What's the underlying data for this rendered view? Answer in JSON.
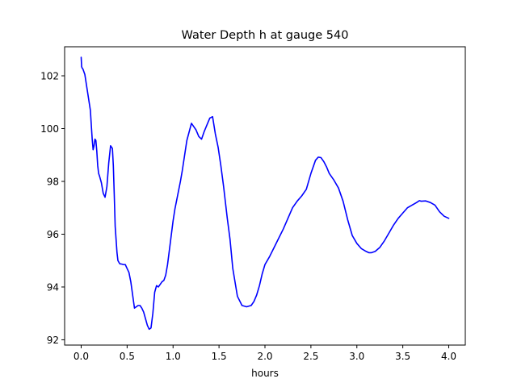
{
  "chart_data": {
    "type": "line",
    "title": "Water Depth h at gauge 540",
    "xlabel": "hours",
    "ylabel": "",
    "xlim": [
      -0.18,
      4.18
    ],
    "ylim": [
      91.8,
      103.1
    ],
    "xticks": [
      0.0,
      0.5,
      1.0,
      1.5,
      2.0,
      2.5,
      3.0,
      3.5,
      4.0
    ],
    "xtick_labels": [
      "0.0",
      "0.5",
      "1.0",
      "1.5",
      "2.0",
      "2.5",
      "3.0",
      "3.5",
      "4.0"
    ],
    "yticks": [
      92,
      94,
      96,
      98,
      100,
      102
    ],
    "ytick_labels": [
      "92",
      "94",
      "96",
      "98",
      "100",
      "102"
    ],
    "grid": false,
    "line_color": "#0000ff",
    "series": [
      {
        "name": "",
        "x": [
          0.0,
          0.005,
          0.01,
          0.02,
          0.04,
          0.06,
          0.08,
          0.1,
          0.12,
          0.13,
          0.14,
          0.15,
          0.16,
          0.17,
          0.18,
          0.19,
          0.2,
          0.22,
          0.24,
          0.26,
          0.28,
          0.3,
          0.32,
          0.34,
          0.35,
          0.36,
          0.37,
          0.38,
          0.39,
          0.4,
          0.42,
          0.44,
          0.46,
          0.48,
          0.5,
          0.52,
          0.54,
          0.56,
          0.58,
          0.6,
          0.62,
          0.64,
          0.66,
          0.68,
          0.7,
          0.72,
          0.74,
          0.76,
          0.78,
          0.8,
          0.82,
          0.84,
          0.86,
          0.88,
          0.9,
          0.92,
          0.94,
          0.96,
          0.98,
          1.0,
          1.02,
          1.04,
          1.06,
          1.08,
          1.1,
          1.15,
          1.2,
          1.25,
          1.28,
          1.31,
          1.34,
          1.37,
          1.4,
          1.43,
          1.46,
          1.49,
          1.52,
          1.55,
          1.57,
          1.59,
          1.62,
          1.65,
          1.7,
          1.75,
          1.8,
          1.85,
          1.88,
          1.91,
          1.94,
          1.97,
          2.0,
          2.05,
          2.1,
          2.15,
          2.2,
          2.25,
          2.3,
          2.35,
          2.4,
          2.45,
          2.5,
          2.55,
          2.58,
          2.61,
          2.64,
          2.67,
          2.7,
          2.75,
          2.8,
          2.85,
          2.9,
          2.95,
          3.0,
          3.05,
          3.1,
          3.13,
          3.16,
          3.2,
          3.25,
          3.3,
          3.35,
          3.4,
          3.45,
          3.5,
          3.55,
          3.6,
          3.65,
          3.68,
          3.7,
          3.75,
          3.8,
          3.85,
          3.9,
          3.95,
          4.0
        ],
        "y": [
          102.7,
          102.35,
          102.3,
          102.25,
          102.05,
          101.6,
          101.15,
          100.7,
          99.6,
          99.2,
          99.35,
          99.6,
          99.55,
          99.15,
          98.6,
          98.3,
          98.2,
          97.95,
          97.55,
          97.4,
          97.8,
          98.7,
          99.35,
          99.25,
          98.6,
          97.5,
          96.3,
          95.8,
          95.3,
          95.0,
          94.88,
          94.87,
          94.85,
          94.85,
          94.7,
          94.55,
          94.2,
          93.7,
          93.2,
          93.25,
          93.3,
          93.3,
          93.2,
          93.05,
          92.8,
          92.55,
          92.4,
          92.45,
          93.0,
          93.8,
          94.05,
          94.0,
          94.1,
          94.2,
          94.25,
          94.45,
          94.85,
          95.4,
          95.95,
          96.5,
          96.95,
          97.3,
          97.65,
          98.0,
          98.4,
          99.55,
          100.2,
          99.95,
          99.7,
          99.6,
          99.9,
          100.15,
          100.4,
          100.45,
          99.8,
          99.3,
          98.6,
          97.8,
          97.2,
          96.6,
          95.8,
          94.7,
          93.65,
          93.3,
          93.25,
          93.3,
          93.45,
          93.7,
          94.05,
          94.5,
          94.85,
          95.15,
          95.5,
          95.85,
          96.2,
          96.6,
          97.0,
          97.25,
          97.45,
          97.7,
          98.3,
          98.8,
          98.92,
          98.9,
          98.75,
          98.55,
          98.3,
          98.05,
          97.75,
          97.25,
          96.55,
          95.95,
          95.65,
          95.45,
          95.35,
          95.3,
          95.3,
          95.35,
          95.5,
          95.75,
          96.05,
          96.35,
          96.6,
          96.8,
          97.0,
          97.1,
          97.2,
          97.27,
          97.25,
          97.26,
          97.2,
          97.1,
          96.85,
          96.68,
          96.6
        ]
      }
    ]
  }
}
